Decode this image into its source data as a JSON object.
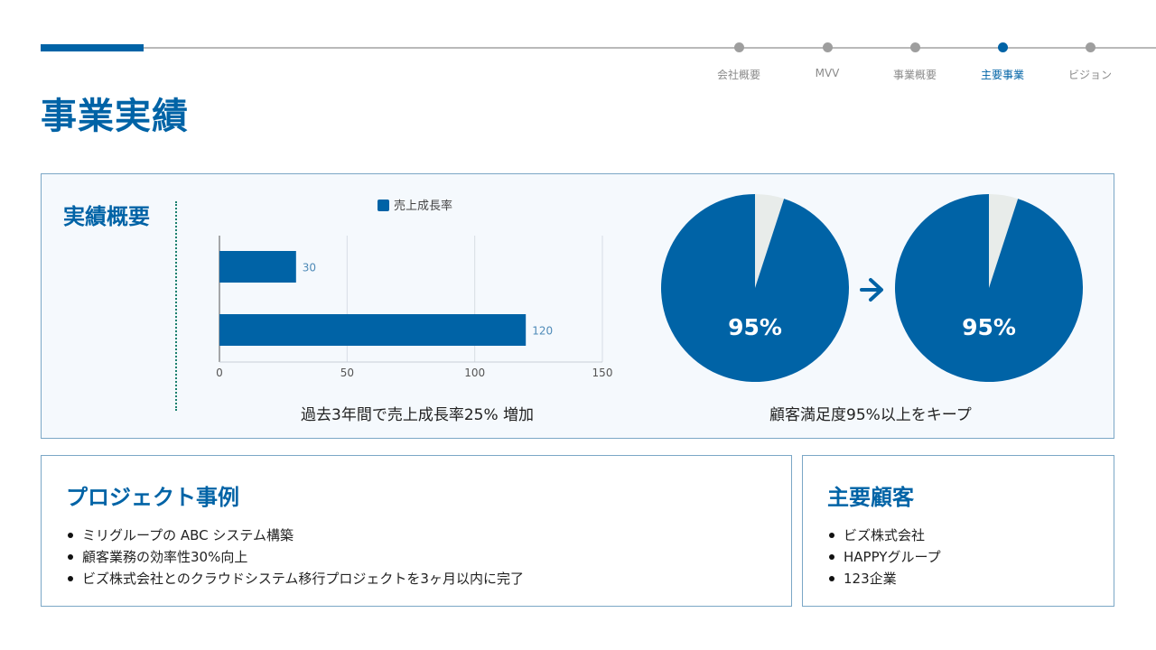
{
  "nav": {
    "items": [
      {
        "label": "会社概要",
        "active": false
      },
      {
        "label": "MVV",
        "active": false
      },
      {
        "label": "事業概要",
        "active": false
      },
      {
        "label": "主要事業",
        "active": true
      },
      {
        "label": "ビジョン",
        "active": false
      }
    ]
  },
  "page_title": "事業実績",
  "summary": {
    "title": "実績概要",
    "bar_caption": "過去3年間で売上成長率25% 増加",
    "pie_caption": "顧客満足度95%以上をキープ"
  },
  "chart_data": [
    {
      "type": "bar",
      "orientation": "horizontal",
      "series": [
        {
          "name": "売上成長率",
          "values": [
            30,
            120
          ]
        }
      ],
      "xlim": [
        0,
        150
      ],
      "xticks": [
        "0",
        "50",
        "100",
        "150"
      ],
      "data_labels": [
        "30",
        "120"
      ],
      "legend_position": "top",
      "grid": true,
      "color": "#0063a6"
    },
    {
      "type": "pie",
      "values": [
        95,
        5
      ],
      "label": "95%",
      "colors": [
        "#0063a6",
        "#e8ecea"
      ]
    },
    {
      "type": "pie",
      "values": [
        95,
        5
      ],
      "label": "95%",
      "colors": [
        "#0063a6",
        "#e8ecea"
      ]
    }
  ],
  "projects": {
    "title": "プロジェクト事例",
    "items": [
      "ミリグループの ABC システム構築",
      "顧客業務の効率性30%向上",
      "ビズ株式会社とのクラウドシステム移行プロジェクトを3ヶ月以内に完了"
    ]
  },
  "clients": {
    "title": "主要顧客",
    "items": [
      "ビズ株式会社",
      "HAPPYグループ",
      "123企業"
    ]
  },
  "icons": {
    "arrow": "arrow-right-icon"
  },
  "colors": {
    "accent": "#0063a6",
    "panel_bg": "#f5f9fd",
    "panel_border": "#7ba7c6"
  }
}
